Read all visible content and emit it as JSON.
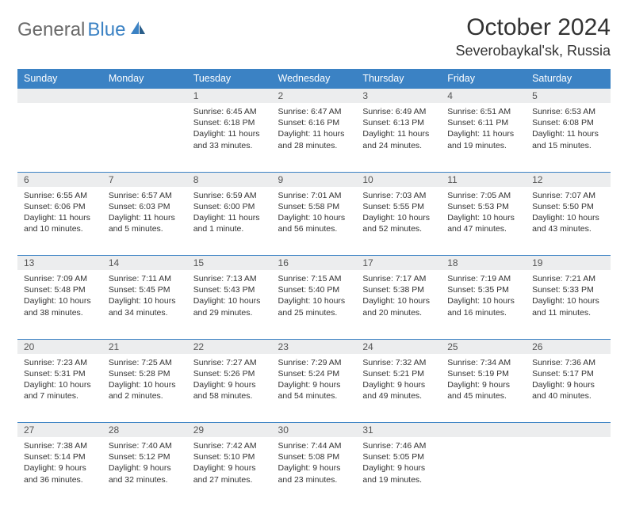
{
  "logo": {
    "text1": "General",
    "text2": "Blue"
  },
  "title": "October 2024",
  "location": "Severobaykal'sk, Russia",
  "colors": {
    "header_bg": "#3b82c4",
    "daynum_bg": "#ecedee",
    "border": "#3b82c4"
  },
  "weekdays": [
    "Sunday",
    "Monday",
    "Tuesday",
    "Wednesday",
    "Thursday",
    "Friday",
    "Saturday"
  ],
  "weeks": [
    {
      "nums": [
        "",
        "",
        "1",
        "2",
        "3",
        "4",
        "5"
      ],
      "cells": [
        {
          "empty": true
        },
        {
          "empty": true
        },
        {
          "sunrise": "Sunrise: 6:45 AM",
          "sunset": "Sunset: 6:18 PM",
          "day1": "Daylight: 11 hours",
          "day2": "and 33 minutes."
        },
        {
          "sunrise": "Sunrise: 6:47 AM",
          "sunset": "Sunset: 6:16 PM",
          "day1": "Daylight: 11 hours",
          "day2": "and 28 minutes."
        },
        {
          "sunrise": "Sunrise: 6:49 AM",
          "sunset": "Sunset: 6:13 PM",
          "day1": "Daylight: 11 hours",
          "day2": "and 24 minutes."
        },
        {
          "sunrise": "Sunrise: 6:51 AM",
          "sunset": "Sunset: 6:11 PM",
          "day1": "Daylight: 11 hours",
          "day2": "and 19 minutes."
        },
        {
          "sunrise": "Sunrise: 6:53 AM",
          "sunset": "Sunset: 6:08 PM",
          "day1": "Daylight: 11 hours",
          "day2": "and 15 minutes."
        }
      ]
    },
    {
      "nums": [
        "6",
        "7",
        "8",
        "9",
        "10",
        "11",
        "12"
      ],
      "cells": [
        {
          "sunrise": "Sunrise: 6:55 AM",
          "sunset": "Sunset: 6:06 PM",
          "day1": "Daylight: 11 hours",
          "day2": "and 10 minutes."
        },
        {
          "sunrise": "Sunrise: 6:57 AM",
          "sunset": "Sunset: 6:03 PM",
          "day1": "Daylight: 11 hours",
          "day2": "and 5 minutes."
        },
        {
          "sunrise": "Sunrise: 6:59 AM",
          "sunset": "Sunset: 6:00 PM",
          "day1": "Daylight: 11 hours",
          "day2": "and 1 minute."
        },
        {
          "sunrise": "Sunrise: 7:01 AM",
          "sunset": "Sunset: 5:58 PM",
          "day1": "Daylight: 10 hours",
          "day2": "and 56 minutes."
        },
        {
          "sunrise": "Sunrise: 7:03 AM",
          "sunset": "Sunset: 5:55 PM",
          "day1": "Daylight: 10 hours",
          "day2": "and 52 minutes."
        },
        {
          "sunrise": "Sunrise: 7:05 AM",
          "sunset": "Sunset: 5:53 PM",
          "day1": "Daylight: 10 hours",
          "day2": "and 47 minutes."
        },
        {
          "sunrise": "Sunrise: 7:07 AM",
          "sunset": "Sunset: 5:50 PM",
          "day1": "Daylight: 10 hours",
          "day2": "and 43 minutes."
        }
      ]
    },
    {
      "nums": [
        "13",
        "14",
        "15",
        "16",
        "17",
        "18",
        "19"
      ],
      "cells": [
        {
          "sunrise": "Sunrise: 7:09 AM",
          "sunset": "Sunset: 5:48 PM",
          "day1": "Daylight: 10 hours",
          "day2": "and 38 minutes."
        },
        {
          "sunrise": "Sunrise: 7:11 AM",
          "sunset": "Sunset: 5:45 PM",
          "day1": "Daylight: 10 hours",
          "day2": "and 34 minutes."
        },
        {
          "sunrise": "Sunrise: 7:13 AM",
          "sunset": "Sunset: 5:43 PM",
          "day1": "Daylight: 10 hours",
          "day2": "and 29 minutes."
        },
        {
          "sunrise": "Sunrise: 7:15 AM",
          "sunset": "Sunset: 5:40 PM",
          "day1": "Daylight: 10 hours",
          "day2": "and 25 minutes."
        },
        {
          "sunrise": "Sunrise: 7:17 AM",
          "sunset": "Sunset: 5:38 PM",
          "day1": "Daylight: 10 hours",
          "day2": "and 20 minutes."
        },
        {
          "sunrise": "Sunrise: 7:19 AM",
          "sunset": "Sunset: 5:35 PM",
          "day1": "Daylight: 10 hours",
          "day2": "and 16 minutes."
        },
        {
          "sunrise": "Sunrise: 7:21 AM",
          "sunset": "Sunset: 5:33 PM",
          "day1": "Daylight: 10 hours",
          "day2": "and 11 minutes."
        }
      ]
    },
    {
      "nums": [
        "20",
        "21",
        "22",
        "23",
        "24",
        "25",
        "26"
      ],
      "cells": [
        {
          "sunrise": "Sunrise: 7:23 AM",
          "sunset": "Sunset: 5:31 PM",
          "day1": "Daylight: 10 hours",
          "day2": "and 7 minutes."
        },
        {
          "sunrise": "Sunrise: 7:25 AM",
          "sunset": "Sunset: 5:28 PM",
          "day1": "Daylight: 10 hours",
          "day2": "and 2 minutes."
        },
        {
          "sunrise": "Sunrise: 7:27 AM",
          "sunset": "Sunset: 5:26 PM",
          "day1": "Daylight: 9 hours",
          "day2": "and 58 minutes."
        },
        {
          "sunrise": "Sunrise: 7:29 AM",
          "sunset": "Sunset: 5:24 PM",
          "day1": "Daylight: 9 hours",
          "day2": "and 54 minutes."
        },
        {
          "sunrise": "Sunrise: 7:32 AM",
          "sunset": "Sunset: 5:21 PM",
          "day1": "Daylight: 9 hours",
          "day2": "and 49 minutes."
        },
        {
          "sunrise": "Sunrise: 7:34 AM",
          "sunset": "Sunset: 5:19 PM",
          "day1": "Daylight: 9 hours",
          "day2": "and 45 minutes."
        },
        {
          "sunrise": "Sunrise: 7:36 AM",
          "sunset": "Sunset: 5:17 PM",
          "day1": "Daylight: 9 hours",
          "day2": "and 40 minutes."
        }
      ]
    },
    {
      "nums": [
        "27",
        "28",
        "29",
        "30",
        "31",
        "",
        ""
      ],
      "cells": [
        {
          "sunrise": "Sunrise: 7:38 AM",
          "sunset": "Sunset: 5:14 PM",
          "day1": "Daylight: 9 hours",
          "day2": "and 36 minutes."
        },
        {
          "sunrise": "Sunrise: 7:40 AM",
          "sunset": "Sunset: 5:12 PM",
          "day1": "Daylight: 9 hours",
          "day2": "and 32 minutes."
        },
        {
          "sunrise": "Sunrise: 7:42 AM",
          "sunset": "Sunset: 5:10 PM",
          "day1": "Daylight: 9 hours",
          "day2": "and 27 minutes."
        },
        {
          "sunrise": "Sunrise: 7:44 AM",
          "sunset": "Sunset: 5:08 PM",
          "day1": "Daylight: 9 hours",
          "day2": "and 23 minutes."
        },
        {
          "sunrise": "Sunrise: 7:46 AM",
          "sunset": "Sunset: 5:05 PM",
          "day1": "Daylight: 9 hours",
          "day2": "and 19 minutes."
        },
        {
          "empty": true
        },
        {
          "empty": true
        }
      ]
    }
  ]
}
